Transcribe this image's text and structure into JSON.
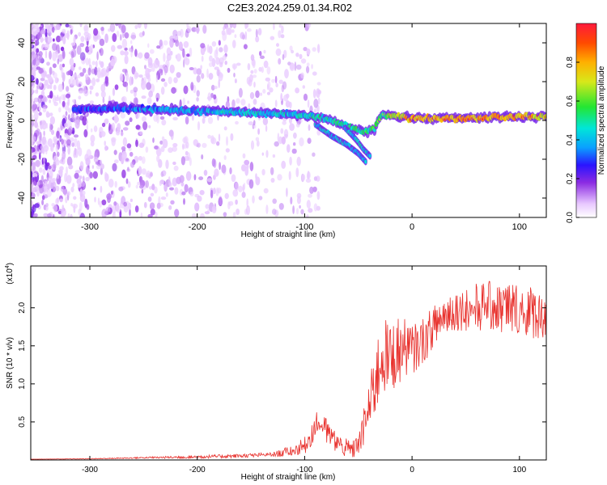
{
  "figure": {
    "title": "C2E3.2024.259.01.34.R02"
  },
  "colors": {
    "snr_line": "#e8322e",
    "scatter_purple": "#7a1fe0",
    "axis": "#000000",
    "background": "#ffffff"
  },
  "chart_data": [
    {
      "type": "heatmap",
      "title": "",
      "xlabel": "Height of straight line (km)",
      "ylabel": "Frequency (Hz)",
      "xlim": [
        -355,
        125
      ],
      "ylim": [
        -50,
        50
      ],
      "x_ticks": [
        -300,
        -200,
        -100,
        0,
        100
      ],
      "y_ticks": [
        -40,
        -20,
        0,
        20,
        40
      ],
      "ridge": {
        "description_points": [
          [
            -315,
            6
          ],
          [
            -250,
            6
          ],
          [
            -200,
            5
          ],
          [
            -150,
            4
          ],
          [
            -110,
            3
          ],
          [
            -80,
            1
          ],
          [
            -60,
            -3
          ],
          [
            -45,
            -6
          ],
          [
            -35,
            -4
          ],
          [
            -28,
            3
          ],
          [
            0,
            1
          ],
          [
            50,
            1
          ],
          [
            100,
            2
          ],
          [
            125,
            2
          ]
        ],
        "amplitude_points": [
          [
            -315,
            0.25
          ],
          [
            -250,
            0.35
          ],
          [
            -200,
            0.4
          ],
          [
            -150,
            0.45
          ],
          [
            -110,
            0.45
          ],
          [
            -80,
            0.5
          ],
          [
            -50,
            0.55
          ],
          [
            -28,
            0.6
          ],
          [
            0,
            0.95
          ],
          [
            50,
            0.95
          ],
          [
            100,
            0.95
          ],
          [
            125,
            0.85
          ]
        ]
      },
      "branches": [
        {
          "points": [
            [
              -90,
              -2
            ],
            [
              -75,
              -8
            ],
            [
              -62,
              -12
            ],
            [
              -50,
              -17
            ],
            [
              -42,
              -22
            ]
          ]
        },
        {
          "points": [
            [
              -62,
              -4
            ],
            [
              -52,
              -10
            ],
            [
              -45,
              -15
            ],
            [
              -38,
              -19
            ]
          ]
        }
      ],
      "colorbar": {
        "label": "Normalized spectral amplitude",
        "range": [
          0,
          1
        ],
        "ticks": [
          "0.0",
          "0.2",
          "0.4",
          "0.6",
          "0.8"
        ],
        "tick_values": [
          0,
          0.2,
          0.4,
          0.6,
          0.8
        ]
      }
    },
    {
      "type": "line",
      "title": "",
      "xlabel": "Height of straight line (km)",
      "ylabel": "SNR (10 * v/v)",
      "y_multiplier_label": "(x10",
      "y_multiplier_exp": "4",
      "y_multiplier_close": ")",
      "xlim": [
        -355,
        125
      ],
      "ylim": [
        0,
        2.55
      ],
      "x_ticks": [
        -300,
        -200,
        -100,
        0,
        100
      ],
      "y_ticks": [
        0.5,
        1.0,
        1.5,
        2.0
      ],
      "y_tick_labels": [
        "0.5",
        "1.0",
        "1.5",
        "2.0"
      ],
      "series": [
        {
          "color": "#e8322e",
          "envelope": [
            [
              -355,
              0.01,
              0.01
            ],
            [
              -300,
              0.01,
              0.02
            ],
            [
              -250,
              0.02,
              0.04
            ],
            [
              -200,
              0.02,
              0.06
            ],
            [
              -160,
              0.03,
              0.08
            ],
            [
              -130,
              0.04,
              0.1
            ],
            [
              -110,
              0.05,
              0.2
            ],
            [
              -100,
              0.08,
              0.3
            ],
            [
              -95,
              0.15,
              0.45
            ],
            [
              -88,
              0.35,
              0.65
            ],
            [
              -82,
              0.25,
              0.6
            ],
            [
              -75,
              0.15,
              0.45
            ],
            [
              -65,
              0.05,
              0.3
            ],
            [
              -55,
              0.02,
              0.25
            ],
            [
              -48,
              0.1,
              0.45
            ],
            [
              -42,
              0.3,
              0.9
            ],
            [
              -35,
              0.6,
              1.4
            ],
            [
              -28,
              0.9,
              1.9
            ],
            [
              -20,
              0.9,
              1.8
            ],
            [
              -12,
              1.0,
              1.9
            ],
            [
              -5,
              1.1,
              1.85
            ],
            [
              0,
              1.1,
              1.8
            ],
            [
              5,
              1.2,
              1.8
            ],
            [
              15,
              1.35,
              1.95
            ],
            [
              25,
              1.6,
              2.1
            ],
            [
              35,
              1.7,
              2.2
            ],
            [
              50,
              1.7,
              2.3
            ],
            [
              70,
              1.7,
              2.35
            ],
            [
              90,
              1.65,
              2.35
            ],
            [
              110,
              1.6,
              2.3
            ],
            [
              125,
              1.6,
              2.25
            ]
          ]
        }
      ]
    }
  ]
}
